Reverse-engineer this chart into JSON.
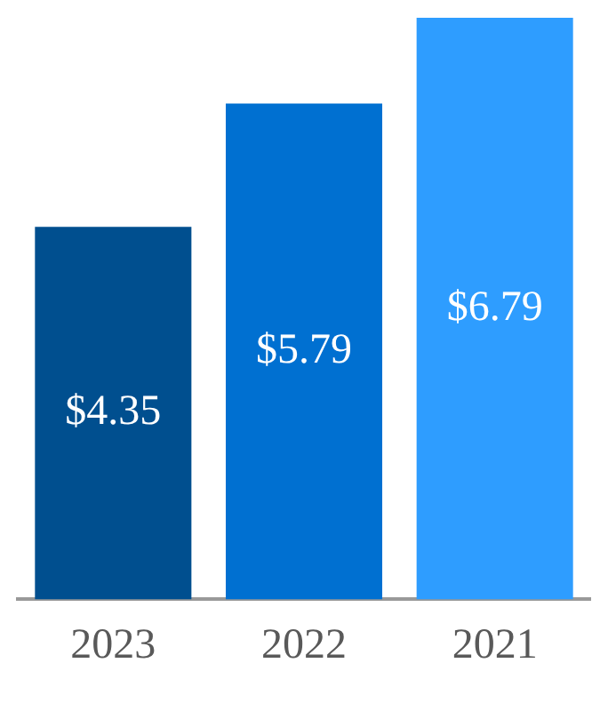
{
  "chart_data": {
    "type": "bar",
    "categories": [
      "2023",
      "2022",
      "2021"
    ],
    "values": [
      4.35,
      5.79,
      6.79
    ],
    "colors": [
      "#004f8f",
      "#0070d1",
      "#2e9dff"
    ],
    "value_labels": [
      "$4.35",
      "$5.79",
      "$6.79"
    ],
    "grid": false,
    "legend": false,
    "tick_labels": "x"
  }
}
